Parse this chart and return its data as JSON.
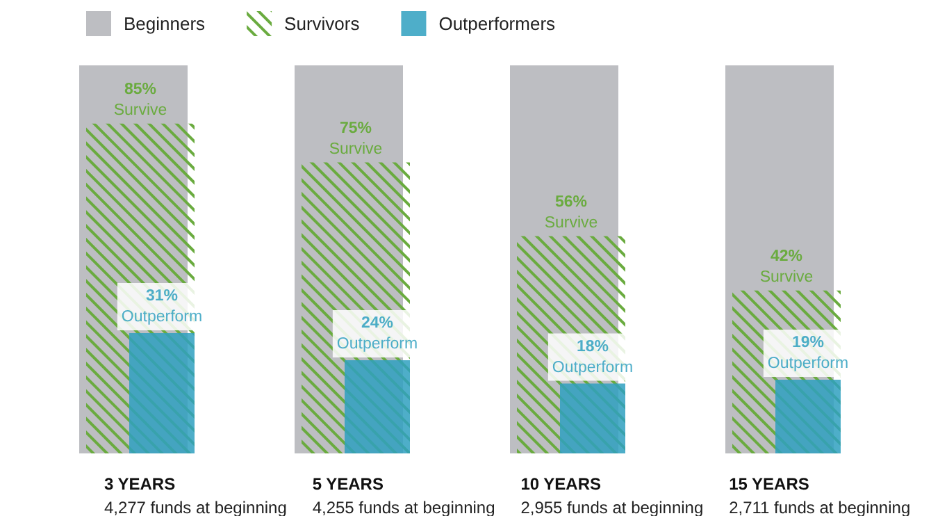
{
  "chart_data": {
    "type": "bar",
    "categories": [
      "3 YEARS\n4,277 funds at beginning",
      "5 YEARS\n4,255 funds at beginning",
      "10 YEARS\n2,955 funds at beginning",
      "15 YEARS\n2,711 funds at beginning"
    ],
    "series": [
      {
        "name": "Beginners",
        "color": "#bdbec2",
        "values": [
          100,
          100,
          100,
          100
        ]
      },
      {
        "name": "Survivors",
        "color": "#6aab3f",
        "values": [
          85,
          75,
          56,
          42
        ],
        "value_labels": [
          "85%\nSurvive",
          "75%\nSurvive",
          "56%\nSurvive",
          "42%\nSurvive"
        ]
      },
      {
        "name": "Outperformers",
        "color": "#2fa0c0",
        "values": [
          31,
          24,
          18,
          19
        ],
        "value_labels": [
          "31%\nOutperform",
          "24%\nOutperform",
          "18%\nOutperform",
          "19%\nOutperform"
        ]
      }
    ],
    "tick_labels": "x",
    "grid": false,
    "legend": "top left"
  }
}
